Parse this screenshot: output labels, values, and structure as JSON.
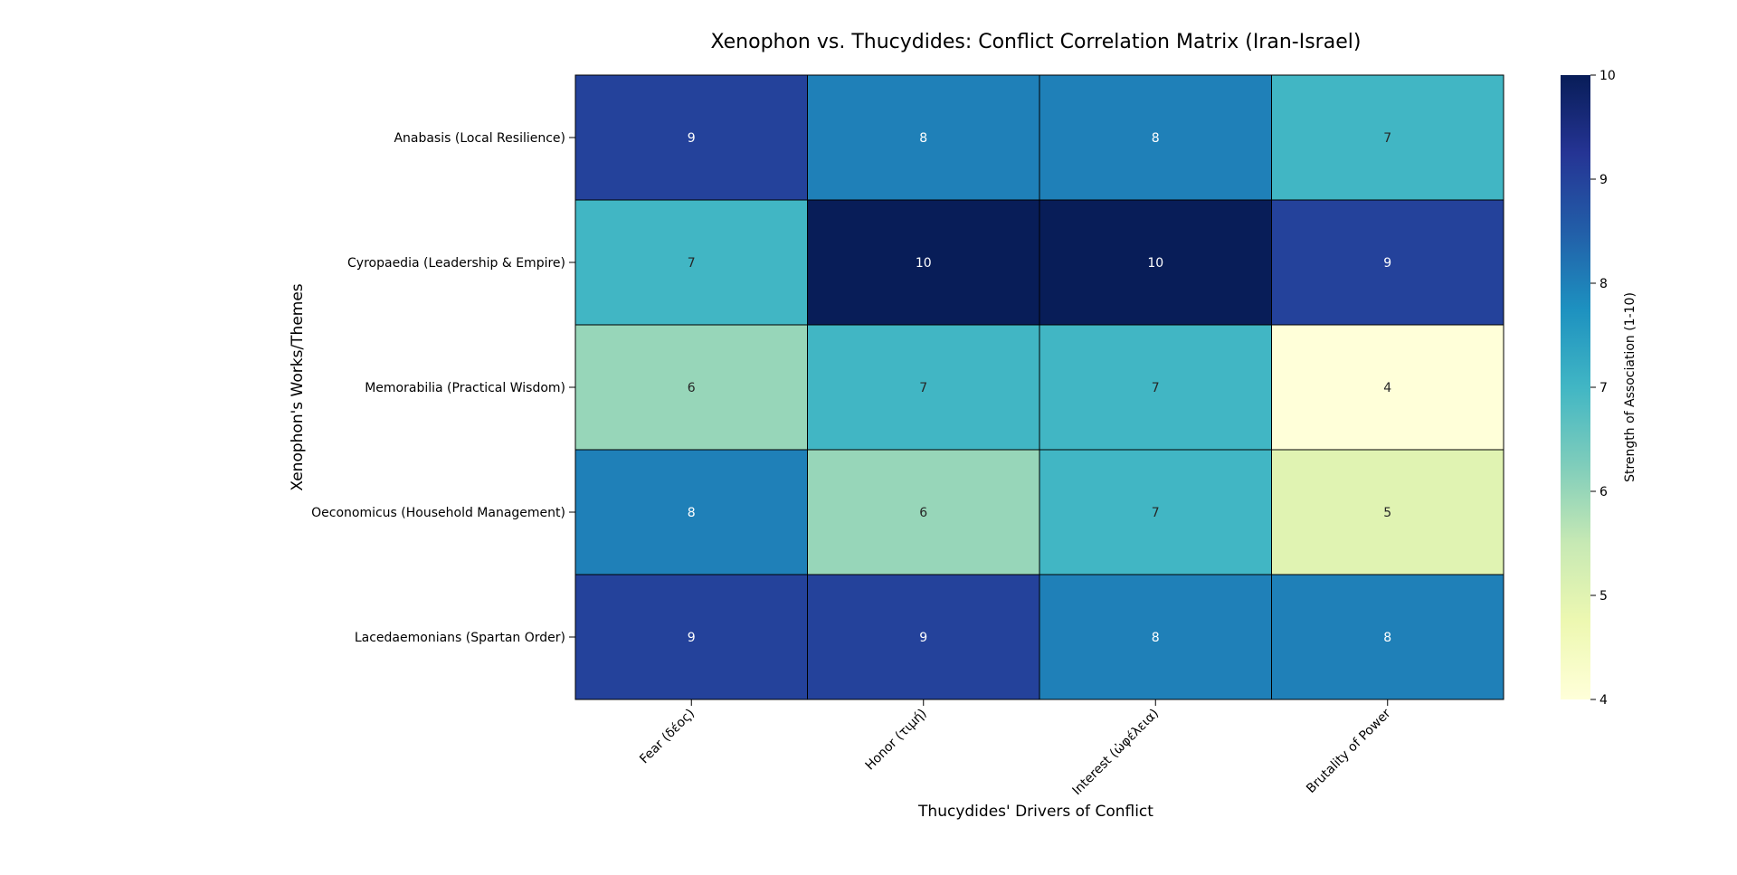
{
  "chart_data": {
    "type": "heatmap",
    "title": "Xenophon vs. Thucydides: Conflict Correlation Matrix (Iran-Israel)",
    "xlabel": "Thucydides' Drivers of Conflict",
    "ylabel": "Xenophon's Works/Themes",
    "x_categories": [
      "Fear (δέος)",
      "Honor (τιμή)",
      "Interest (ὠφέλεια)",
      "Brutality of Power"
    ],
    "y_categories": [
      "Anabasis (Local Resilience)",
      "Cyropaedia (Leadership & Empire)",
      "Memorabilia (Practical Wisdom)",
      "Oeconomicus (Household Management)",
      "Lacedaemonians (Spartan Order)"
    ],
    "values": [
      [
        9,
        8,
        8,
        7
      ],
      [
        7,
        10,
        10,
        9
      ],
      [
        6,
        7,
        7,
        4
      ],
      [
        8,
        6,
        7,
        5
      ],
      [
        9,
        9,
        8,
        8
      ]
    ],
    "colorbar": {
      "label": "Strength of Association (1-10)",
      "range": [
        4,
        10
      ],
      "ticks": [
        4,
        5,
        6,
        7,
        8,
        9,
        10
      ],
      "colormap": "YlGnBu"
    }
  },
  "colors": {
    "light_text": "#ffffff",
    "dark_text": "#262626",
    "cell_border": "#000000"
  }
}
